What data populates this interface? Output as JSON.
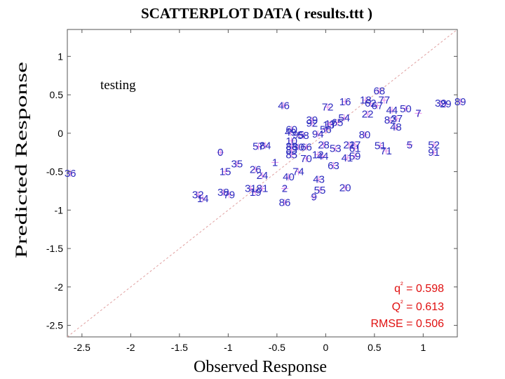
{
  "chart_data": {
    "type": "scatter",
    "title": "SCATTERPLOT DATA ( results.ttt )",
    "xlabel": "Observed Response",
    "ylabel": "Predicted Response",
    "annotation": "testing",
    "xlim": [
      -2.65,
      1.35
    ],
    "ylim": [
      -2.65,
      1.35
    ],
    "xticks": [
      -2.5,
      -2,
      -1.5,
      -1,
      -0.5,
      0,
      0.5,
      1
    ],
    "xtick_labels": [
      "-2.5",
      "-2",
      "-1.5",
      "-1",
      "-0.5",
      "0",
      "0.5",
      "1"
    ],
    "yticks": [
      -2.5,
      -2,
      -1.5,
      -1,
      -0.5,
      0,
      0.5,
      1
    ],
    "ytick_labels": [
      "-2.5",
      "-2",
      "-1.5",
      "-1",
      "-0.5",
      "0",
      "0.5",
      "1"
    ],
    "reference_line": "y = x",
    "points": [
      {
        "label": "36",
        "x": -2.62,
        "y": -0.52
      },
      {
        "label": "0",
        "x": -1.08,
        "y": -0.25
      },
      {
        "label": "15",
        "x": -1.03,
        "y": -0.5
      },
      {
        "label": "35",
        "x": -0.91,
        "y": -0.4
      },
      {
        "label": "57",
        "x": -0.69,
        "y": -0.17
      },
      {
        "label": "84",
        "x": -0.62,
        "y": -0.16
      },
      {
        "label": "26",
        "x": -0.72,
        "y": -0.47
      },
      {
        "label": "24",
        "x": -0.65,
        "y": -0.55
      },
      {
        "label": "1",
        "x": -0.52,
        "y": -0.38
      },
      {
        "label": "32",
        "x": -1.31,
        "y": -0.8
      },
      {
        "label": "14",
        "x": -1.26,
        "y": -0.85
      },
      {
        "label": "38",
        "x": -1.05,
        "y": -0.77
      },
      {
        "label": "79",
        "x": -0.99,
        "y": -0.8
      },
      {
        "label": "31",
        "x": -0.77,
        "y": -0.72
      },
      {
        "label": "19",
        "x": -0.72,
        "y": -0.77
      },
      {
        "label": "81",
        "x": -0.65,
        "y": -0.72
      },
      {
        "label": "2",
        "x": -0.42,
        "y": -0.72
      },
      {
        "label": "86",
        "x": -0.42,
        "y": -0.9
      },
      {
        "label": "40",
        "x": -0.38,
        "y": -0.57
      },
      {
        "label": "74",
        "x": -0.28,
        "y": -0.5
      },
      {
        "label": "46",
        "x": -0.43,
        "y": 0.36
      },
      {
        "label": "60",
        "x": -0.35,
        "y": 0.05
      },
      {
        "label": "49",
        "x": -0.36,
        "y": 0.01
      },
      {
        "label": "95",
        "x": -0.28,
        "y": -0.02
      },
      {
        "label": "58",
        "x": -0.23,
        "y": -0.03
      },
      {
        "label": "10",
        "x": -0.35,
        "y": -0.1
      },
      {
        "label": "88",
        "x": -0.35,
        "y": -0.17
      },
      {
        "label": "30",
        "x": -0.28,
        "y": -0.18
      },
      {
        "label": "66",
        "x": -0.2,
        "y": -0.18
      },
      {
        "label": "85",
        "x": -0.35,
        "y": -0.28
      },
      {
        "label": "83",
        "x": -0.35,
        "y": -0.22
      },
      {
        "label": "70",
        "x": -0.2,
        "y": -0.33
      },
      {
        "label": "39",
        "x": -0.14,
        "y": 0.17
      },
      {
        "label": "92",
        "x": -0.14,
        "y": 0.13
      },
      {
        "label": "94",
        "x": -0.08,
        "y": -0.01
      },
      {
        "label": "28",
        "x": -0.02,
        "y": -0.15
      },
      {
        "label": "13",
        "x": 0.03,
        "y": 0.11
      },
      {
        "label": "17",
        "x": 0.05,
        "y": 0.12
      },
      {
        "label": "56",
        "x": 0.0,
        "y": 0.05
      },
      {
        "label": "65",
        "x": 0.12,
        "y": 0.14
      },
      {
        "label": "72",
        "x": 0.02,
        "y": 0.34
      },
      {
        "label": "54",
        "x": 0.19,
        "y": 0.2
      },
      {
        "label": "16",
        "x": 0.2,
        "y": 0.41
      },
      {
        "label": "12",
        "x": -0.08,
        "y": -0.28
      },
      {
        "label": "44",
        "x": -0.03,
        "y": -0.3
      },
      {
        "label": "53",
        "x": 0.1,
        "y": -0.2
      },
      {
        "label": "63",
        "x": 0.08,
        "y": -0.42
      },
      {
        "label": "43",
        "x": -0.07,
        "y": -0.6
      },
      {
        "label": "55",
        "x": -0.06,
        "y": -0.74
      },
      {
        "label": "9",
        "x": -0.12,
        "y": -0.83
      },
      {
        "label": "20",
        "x": 0.2,
        "y": -0.71
      },
      {
        "label": "41",
        "x": 0.22,
        "y": -0.32
      },
      {
        "label": "59",
        "x": 0.3,
        "y": -0.3
      },
      {
        "label": "21",
        "x": 0.24,
        "y": -0.15
      },
      {
        "label": "27",
        "x": 0.3,
        "y": -0.15
      },
      {
        "label": "61",
        "x": 0.3,
        "y": -0.2
      },
      {
        "label": "80",
        "x": 0.4,
        "y": -0.02
      },
      {
        "label": "51",
        "x": 0.56,
        "y": -0.16
      },
      {
        "label": "71",
        "x": 0.62,
        "y": -0.23
      },
      {
        "label": "18",
        "x": 0.41,
        "y": 0.43
      },
      {
        "label": "68",
        "x": 0.55,
        "y": 0.55
      },
      {
        "label": "62",
        "x": 0.46,
        "y": 0.39
      },
      {
        "label": "67",
        "x": 0.53,
        "y": 0.36
      },
      {
        "label": "77",
        "x": 0.6,
        "y": 0.43
      },
      {
        "label": "22",
        "x": 0.43,
        "y": 0.25
      },
      {
        "label": "44",
        "x": 0.68,
        "y": 0.3
      },
      {
        "label": "50",
        "x": 0.82,
        "y": 0.32
      },
      {
        "label": "82",
        "x": 0.66,
        "y": 0.17
      },
      {
        "label": "37",
        "x": 0.73,
        "y": 0.19
      },
      {
        "label": "48",
        "x": 0.72,
        "y": 0.08
      },
      {
        "label": "7",
        "x": 0.95,
        "y": 0.26
      },
      {
        "label": "5",
        "x": 0.86,
        "y": -0.15
      },
      {
        "label": "52",
        "x": 1.11,
        "y": -0.15
      },
      {
        "label": "91",
        "x": 1.11,
        "y": -0.25
      },
      {
        "label": "39",
        "x": 1.18,
        "y": 0.39
      },
      {
        "label": "29",
        "x": 1.23,
        "y": 0.38
      },
      {
        "label": "89",
        "x": 1.38,
        "y": 0.41
      }
    ],
    "stats": [
      {
        "label": "q²",
        "value": "0.598"
      },
      {
        "label": "Q²",
        "value": "0.613"
      },
      {
        "label": "RMSE",
        "value": "0.506"
      }
    ],
    "colors": {
      "label": "#2b2bbf",
      "marker": "#e88ae8",
      "stats": "#e01010",
      "diagonal": "#e0a0a0",
      "axis": "#555555"
    }
  }
}
